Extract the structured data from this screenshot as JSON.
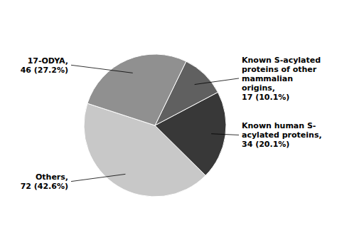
{
  "chart_data": {
    "type": "pie",
    "categories": [
      "Others,\n72 (42.6%)",
      "Known human S-\nacylated proteins,\n34 (20.1%)",
      "Known S-acylated\nproteins of other\nmammalian\norigins,\n17 (10.1%)",
      "17-ODYA,\n46 (27.2%)"
    ],
    "values": [
      72,
      34,
      17,
      46
    ],
    "colors": [
      "#c8c8c8",
      "#383838",
      "#606060",
      "#909090"
    ]
  }
}
